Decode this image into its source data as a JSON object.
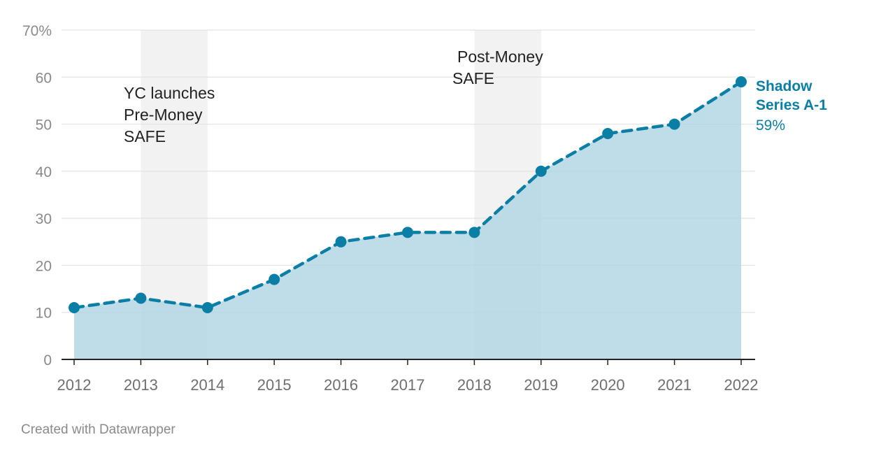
{
  "chart_data": {
    "type": "area",
    "x": [
      "2012",
      "2013",
      "2014",
      "2015",
      "2016",
      "2017",
      "2018",
      "2019",
      "2020",
      "2021",
      "2022"
    ],
    "series": [
      {
        "name": "Shadow Series A-1",
        "values": [
          11,
          13,
          11,
          17,
          25,
          27,
          27,
          40,
          48,
          50,
          59
        ],
        "end_label_value": "59%"
      }
    ],
    "y_ticks": [
      "0",
      "10",
      "20",
      "30",
      "40",
      "50",
      "60",
      "70%"
    ],
    "ylim": [
      0,
      70
    ],
    "grid": true,
    "highlight_bands": [
      {
        "from": "2013",
        "to": "2014",
        "label_lines": [
          "YC launches",
          "Pre-Money",
          "SAFE"
        ]
      },
      {
        "from": "2018",
        "to": "2019",
        "label_lines": [
          "Post-Money",
          "SAFE"
        ]
      }
    ],
    "colors": {
      "line": "#0a7ea4",
      "area": "#b0d5e4",
      "band": "#f2f2f2",
      "grid": "#e3e3e3",
      "axis": "#222222"
    }
  },
  "footer": {
    "credit": "Created with Datawrapper"
  }
}
